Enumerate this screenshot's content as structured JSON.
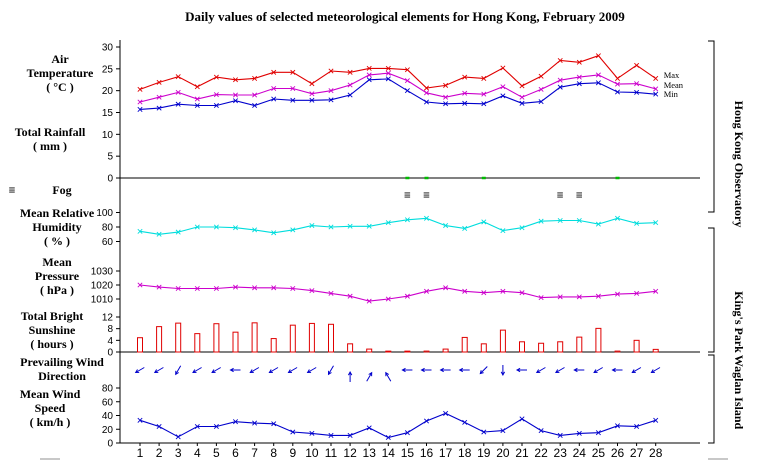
{
  "title": "Daily values of selected meteorological elements for Hong Kong, February 2009",
  "colors": {
    "max": "#e00000",
    "mean": "#cc00cc",
    "min": "#0000cc",
    "rain": "#00bb00",
    "humidity": "#00dddd",
    "pressure": "#cc00cc",
    "sunshine": "#e00000",
    "wind": "#0000cc",
    "axis": "#000000"
  },
  "stations": {
    "hko": "Hong Kong Observatory",
    "kp": "King's Park",
    "wag": "Waglan Island"
  },
  "panels": {
    "temp": {
      "label": [
        "Air",
        "Temperature",
        "( °C )"
      ]
    },
    "rain": {
      "label": [
        "Total Rainfall",
        "( mm )"
      ]
    },
    "fog": {
      "label": "Fog",
      "symbol": "≡"
    },
    "rh": {
      "label": [
        "Mean Relative",
        "Humidity",
        "( % )"
      ]
    },
    "pres": {
      "label": [
        "Mean",
        "Pressure",
        "( hPa )"
      ]
    },
    "sun": {
      "label": [
        "Total Bright",
        "Sunshine",
        "( hours )"
      ]
    },
    "wdir": {
      "label": [
        "Prevailing Wind",
        "Direction"
      ]
    },
    "wspd": {
      "label": [
        "Mean Wind",
        "Speed",
        "( km/h )"
      ]
    }
  },
  "chart_data": {
    "type": "line",
    "title": "Daily values of selected meteorological elements for Hong Kong, February 2009",
    "days": [
      1,
      2,
      3,
      4,
      5,
      6,
      7,
      8,
      9,
      10,
      11,
      12,
      13,
      14,
      15,
      16,
      17,
      18,
      19,
      20,
      21,
      22,
      23,
      24,
      25,
      26,
      27,
      28
    ],
    "temperature": {
      "ylim": [
        0,
        30
      ],
      "yticks": [
        0,
        5,
        10,
        15,
        20,
        25,
        30
      ],
      "series": [
        {
          "name": "Max",
          "values": [
            20.3,
            21.9,
            23.2,
            20.9,
            23.1,
            22.5,
            22.8,
            24.2,
            24.2,
            21.6,
            24.5,
            24.2,
            25.1,
            25.1,
            24.8,
            20.6,
            21.2,
            23.1,
            22.8,
            25.2,
            21.1,
            23.3,
            26.9,
            26.5,
            28.0,
            22.8,
            25.8,
            22.8
          ]
        },
        {
          "name": "Mean",
          "values": [
            17.4,
            18.5,
            19.6,
            18.1,
            19.1,
            19.0,
            19.0,
            20.5,
            20.5,
            19.3,
            20.0,
            21.3,
            23.6,
            24.0,
            22.3,
            19.5,
            18.5,
            19.4,
            19.2,
            20.9,
            18.5,
            20.3,
            22.4,
            23.1,
            23.6,
            21.5,
            21.6,
            20.4
          ]
        },
        {
          "name": "Min",
          "values": [
            15.7,
            16.0,
            16.9,
            16.6,
            16.6,
            17.7,
            16.6,
            18.1,
            17.8,
            17.8,
            17.9,
            19.0,
            22.5,
            22.7,
            20.0,
            17.4,
            17.0,
            17.1,
            17.0,
            18.8,
            17.1,
            17.5,
            20.8,
            21.6,
            21.8,
            19.7,
            19.6,
            19.2
          ]
        }
      ]
    },
    "rainfall_mm": {
      "trace_days": [
        15,
        16,
        19,
        26
      ]
    },
    "fog_days": [
      15,
      16,
      23,
      24
    ],
    "relative_humidity": {
      "yticks": [
        60,
        80,
        100
      ],
      "values": [
        74,
        70,
        73,
        80,
        80,
        79,
        76,
        72,
        76,
        82,
        80,
        81,
        81,
        86,
        90,
        92,
        82,
        78,
        87,
        75,
        79,
        88,
        89,
        89,
        84,
        92,
        85,
        86
      ]
    },
    "pressure_hpa": {
      "yticks": [
        1010,
        1020,
        1030
      ],
      "values": [
        1020.0,
        1018.5,
        1017.5,
        1017.5,
        1017.5,
        1018.5,
        1018.0,
        1018.0,
        1017.5,
        1016.0,
        1014.0,
        1012.0,
        1008.5,
        1010.0,
        1012.0,
        1015.5,
        1018.0,
        1015.5,
        1014.5,
        1015.5,
        1014.5,
        1011.0,
        1011.5,
        1011.5,
        1012.0,
        1013.5,
        1014.0,
        1015.5
      ]
    },
    "sunshine_hours": {
      "yticks": [
        0,
        4,
        8,
        12
      ],
      "values": [
        4.9,
        8.7,
        9.9,
        6.3,
        9.7,
        6.8,
        10.0,
        4.6,
        9.2,
        9.8,
        9.5,
        2.8,
        1.0,
        0.3,
        0.3,
        0.0,
        1.0,
        5.0,
        2.8,
        7.5,
        3.5,
        3.0,
        3.5,
        5.1,
        8.1,
        0.0,
        4.0,
        0.9
      ]
    },
    "wind_direction_deg": {
      "values": [
        60,
        60,
        30,
        60,
        60,
        90,
        60,
        60,
        60,
        60,
        30,
        180,
        210,
        150,
        90,
        90,
        90,
        90,
        45,
        0,
        90,
        60,
        60,
        90,
        60,
        90,
        60,
        60
      ]
    },
    "wind_speed_kmh": {
      "yticks": [
        0,
        20,
        40,
        60,
        80
      ],
      "values": [
        33,
        24,
        9,
        24,
        24,
        31,
        29,
        28,
        16,
        14,
        11,
        11,
        22,
        8,
        15,
        32,
        43,
        30,
        16,
        18,
        35,
        18,
        11,
        14,
        15,
        25,
        24,
        33
      ]
    },
    "legend": [
      "Max",
      "Mean",
      "Min"
    ]
  }
}
